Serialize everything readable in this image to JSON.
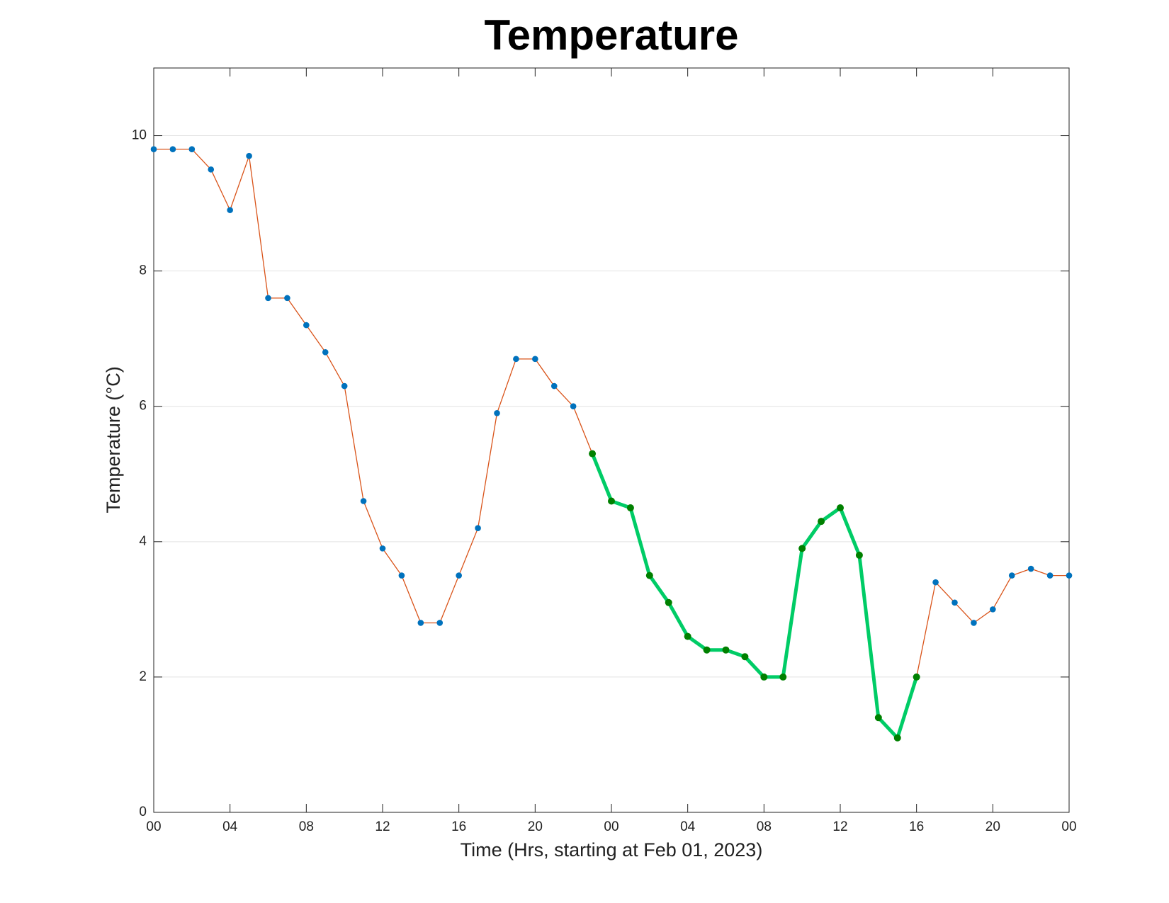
{
  "chart_data": {
    "type": "line",
    "title": "Temperature",
    "x_label": "Time (Hrs, starting at Feb 01, 2023)",
    "y_label": "Temperature (°C)",
    "x": [
      0,
      1,
      2,
      3,
      4,
      5,
      6,
      7,
      8,
      9,
      10,
      11,
      12,
      13,
      14,
      15,
      16,
      17,
      18,
      19,
      20,
      21,
      22,
      23,
      24,
      25,
      26,
      27,
      28,
      29,
      30,
      31,
      32,
      33,
      34,
      35,
      36,
      37,
      38,
      39,
      40,
      41,
      42,
      43,
      44,
      45,
      46,
      47,
      48
    ],
    "series": [
      {
        "color": "#d95319",
        "marker_color": "#0072bd",
        "values": [
          9.8,
          9.8,
          9.8,
          9.5,
          8.9,
          9.7,
          7.6,
          7.6,
          7.2,
          6.8,
          6.3,
          4.6,
          3.9,
          3.5,
          2.8,
          2.8,
          3.5,
          4.2,
          5.9,
          6.7,
          6.7,
          6.3,
          6.0,
          5.3,
          4.6,
          4.5,
          3.5,
          3.1,
          2.6,
          2.4,
          2.4,
          2.3,
          2.0,
          2.0,
          3.9,
          4.3,
          4.5,
          3.8,
          1.4,
          1.1,
          2.0,
          3.4,
          3.1,
          2.8,
          3.0,
          3.5,
          3.6,
          3.5,
          3.5
        ]
      },
      {
        "color": "#00cc66",
        "marker_color": "#008000",
        "values": [
          null,
          null,
          null,
          null,
          null,
          null,
          null,
          null,
          null,
          null,
          null,
          null,
          null,
          null,
          null,
          null,
          null,
          null,
          null,
          null,
          null,
          null,
          null,
          5.3,
          4.6,
          4.5,
          3.5,
          3.1,
          2.6,
          2.4,
          2.4,
          2.3,
          2.0,
          2.0,
          3.9,
          4.3,
          4.5,
          3.8,
          1.4,
          1.1,
          2.0,
          null,
          null,
          null,
          null,
          null,
          null,
          null,
          null
        ]
      }
    ],
    "xlim": [
      0,
      48
    ],
    "xticks": [
      {
        "value": 0,
        "label": "00"
      },
      {
        "value": 4,
        "label": "04"
      },
      {
        "value": 8,
        "label": "08"
      },
      {
        "value": 12,
        "label": "12"
      },
      {
        "value": 16,
        "label": "16"
      },
      {
        "value": 20,
        "label": "20"
      },
      {
        "value": 24,
        "label": "00"
      },
      {
        "value": 28,
        "label": "04"
      },
      {
        "value": 32,
        "label": "08"
      },
      {
        "value": 36,
        "label": "12"
      },
      {
        "value": 40,
        "label": "16"
      },
      {
        "value": 44,
        "label": "20"
      },
      {
        "value": 48,
        "label": "00"
      }
    ],
    "ylim": [
      0,
      11
    ],
    "yticks": [
      0,
      2,
      4,
      6,
      8,
      10
    ],
    "grid": true
  }
}
